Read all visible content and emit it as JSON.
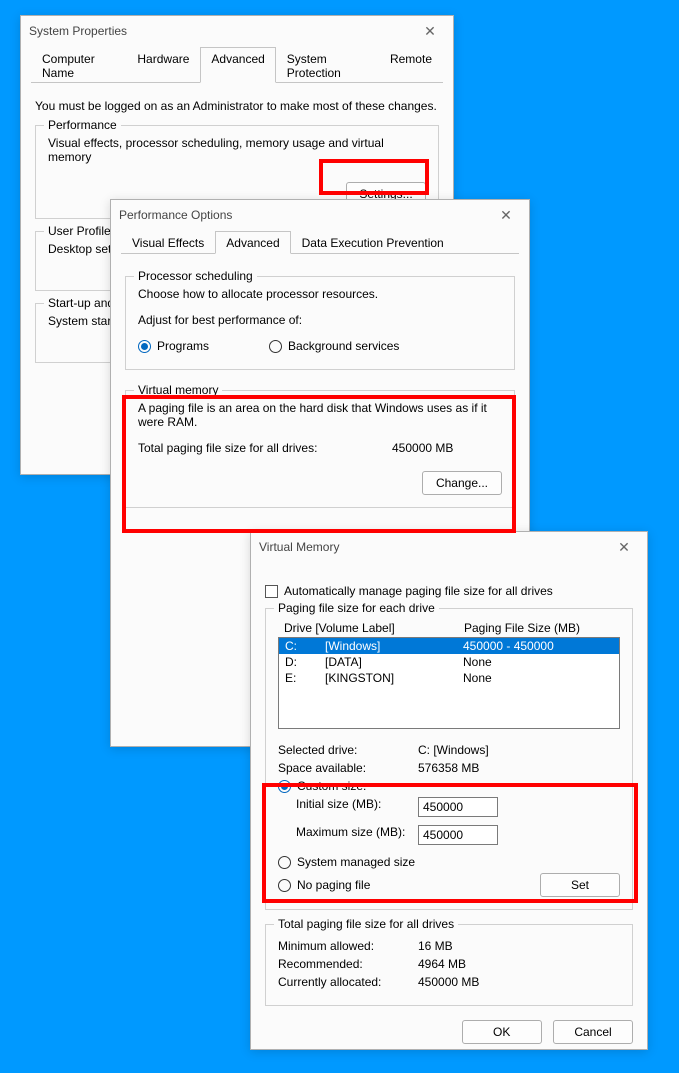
{
  "colors": {
    "bg": "#0099ff",
    "highlight": "#ff0000",
    "selection": "#0078d7",
    "accent": "#0067c0"
  },
  "win1": {
    "title": "System Properties",
    "tabs": {
      "computer_name": "Computer Name",
      "hardware": "Hardware",
      "advanced": "Advanced",
      "system_protection": "System Protection",
      "remote": "Remote"
    },
    "admin_note": "You must be logged on as an Administrator to make most of these changes.",
    "perf": {
      "title": "Performance",
      "desc": "Visual effects, processor scheduling, memory usage and virtual memory",
      "settings_btn": "Settings..."
    },
    "profiles": {
      "title": "User Profiles",
      "desc": "Desktop sett"
    },
    "startup": {
      "title": "Start-up and",
      "desc": "System start"
    }
  },
  "win2": {
    "title": "Performance Options",
    "tabs": {
      "visual": "Visual Effects",
      "advanced": "Advanced",
      "dep": "Data Execution Prevention"
    },
    "sched": {
      "title": "Processor scheduling",
      "desc": "Choose how to allocate processor resources.",
      "adjust": "Adjust for best performance of:",
      "programs": "Programs",
      "bg": "Background services"
    },
    "vm": {
      "title": "Virtual memory",
      "desc": "A paging file is an area on the hard disk that Windows uses as if it were RAM.",
      "total_label": "Total paging file size for all drives:",
      "total_value": "450000 MB",
      "change_btn": "Change..."
    }
  },
  "win3": {
    "title": "Virtual Memory",
    "auto_check": "Automatically manage paging file size for all drives",
    "group_title": "Paging file size for each drive",
    "header_drive": "Drive  [Volume Label]",
    "header_size": "Paging File Size (MB)",
    "rows": [
      {
        "letter": "C:",
        "label": "[Windows]",
        "size": "450000 - 450000",
        "selected": true
      },
      {
        "letter": "D:",
        "label": "[DATA]",
        "size": "None",
        "selected": false
      },
      {
        "letter": "E:",
        "label": "[KINGSTON]",
        "size": "None",
        "selected": false
      }
    ],
    "selected_drive_label": "Selected drive:",
    "selected_drive_value": "C:  [Windows]",
    "space_label": "Space available:",
    "space_value": "576358 MB",
    "custom_size": "Custom size:",
    "initial_label": "Initial size (MB):",
    "initial_value": "450000",
    "max_label": "Maximum size (MB):",
    "max_value": "450000",
    "system_managed": "System managed size",
    "no_paging": "No paging file",
    "set_btn": "Set",
    "totals": {
      "title": "Total paging file size for all drives",
      "min_label": "Minimum allowed:",
      "min_value": "16 MB",
      "rec_label": "Recommended:",
      "rec_value": "4964 MB",
      "cur_label": "Currently allocated:",
      "cur_value": "450000 MB"
    },
    "ok_btn": "OK",
    "cancel_btn": "Cancel"
  }
}
